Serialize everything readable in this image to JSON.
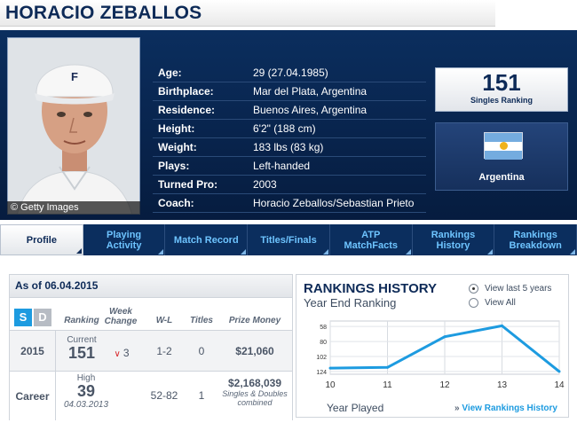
{
  "player": {
    "name": "HORACIO ZEBALLOS",
    "photo_credit": "© Getty Images",
    "info": [
      {
        "label": "Age:",
        "value": "29 (27.04.1985)"
      },
      {
        "label": "Birthplace:",
        "value": "Mar del Plata, Argentina"
      },
      {
        "label": "Residence:",
        "value": "Buenos Aires, Argentina"
      },
      {
        "label": "Height:",
        "value": "6'2\" (188 cm)"
      },
      {
        "label": "Weight:",
        "value": "183 lbs (83 kg)"
      },
      {
        "label": "Plays:",
        "value": "Left-handed"
      },
      {
        "label": "Turned Pro:",
        "value": "2003"
      },
      {
        "label": "Coach:",
        "value": "Horacio Zeballos/Sebastian Prieto"
      }
    ],
    "ranking": {
      "number": "151",
      "label": "Singles Ranking"
    },
    "country": "Argentina"
  },
  "tabs": [
    {
      "label": "Profile",
      "active": true
    },
    {
      "label": "Playing Activity",
      "active": false
    },
    {
      "label": "Match Record",
      "active": false
    },
    {
      "label": "Titles/Finals",
      "active": false
    },
    {
      "label": "ATP MatchFacts",
      "active": false
    },
    {
      "label": "Rankings History",
      "active": false
    },
    {
      "label": "Rankings Breakdown",
      "active": false
    }
  ],
  "stats": {
    "as_of": "As of 06.04.2015",
    "toggle": {
      "singles": "S",
      "doubles": "D"
    },
    "headers": {
      "ranking": "Ranking",
      "week_change": "Week Change",
      "wl": "W-L",
      "titles": "Titles",
      "prize": "Prize Money"
    },
    "rows": [
      {
        "year": "2015",
        "rank_label": "Current",
        "rank": "151",
        "change": "3",
        "wl": "1-2",
        "titles": "0",
        "prize": "$21,060"
      },
      {
        "year": "Career",
        "rank_label": "High",
        "rank": "39",
        "rank_date": "04.03.2013",
        "wl": "52-82",
        "titles": "1",
        "prize": "$2,168,039",
        "prize_note": "Singles & Doubles combined"
      }
    ]
  },
  "history": {
    "title": "RANKINGS HISTORY",
    "subtitle": "Year End Ranking",
    "options": [
      {
        "label": "View last 5 years",
        "checked": true
      },
      {
        "label": "View All",
        "checked": false
      }
    ],
    "x_title": "Year Played",
    "link_label": "View Rankings History"
  },
  "colors": {
    "accent": "#1d9be0",
    "navy": "#0b2e5e",
    "arrow_down": "#d8262b"
  },
  "chart_data": {
    "type": "line",
    "title": "RANKINGS HISTORY",
    "subtitle": "Year End Ranking",
    "xlabel": "Year Played",
    "ylabel": "",
    "x": [
      "10",
      "11",
      "12",
      "13",
      "14"
    ],
    "series": [
      {
        "values": [
          119,
          118,
          73,
          57,
          124
        ]
      }
    ],
    "xticks": [
      "10",
      "11",
      "12",
      "13",
      "14"
    ],
    "yticks": [
      "58",
      "80",
      "102",
      "124"
    ],
    "ylim": [
      50,
      128
    ],
    "y_inverted": true,
    "grid": true,
    "legend": "none"
  }
}
